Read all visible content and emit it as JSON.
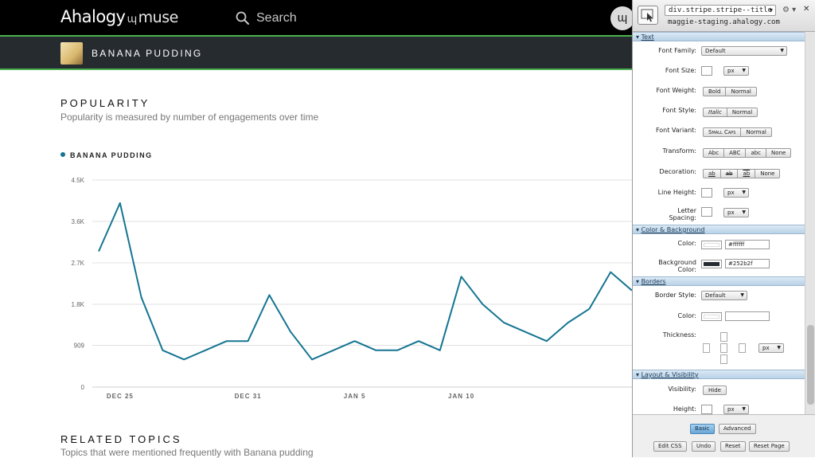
{
  "header": {
    "logo_main": "Ahalogy",
    "logo_glyph": "ɰ",
    "logo_sub": "muse",
    "search_placeholder": "Search",
    "user_initial": "ɰ"
  },
  "stripe": {
    "title": "BANANA PUDDING"
  },
  "popularity": {
    "title": "POPULARITY",
    "subtitle": "Popularity is measured by number of engagements over time",
    "legend": "BANANA PUDDING"
  },
  "related": {
    "title": "RELATED TOPICS",
    "subtitle": "Topics that were mentioned frequently with Banana pudding"
  },
  "chart_data": {
    "type": "line",
    "series": [
      {
        "name": "BANANA PUDDING",
        "color": "#157592",
        "x": [
          0,
          1,
          2,
          3,
          4,
          5,
          6,
          7,
          8,
          9,
          10,
          11,
          12,
          13,
          14,
          15,
          16,
          17,
          18,
          19,
          20,
          21,
          22,
          23,
          24,
          25
        ],
        "values": [
          2950,
          4000,
          1950,
          800,
          600,
          800,
          1000,
          1000,
          2000,
          1200,
          600,
          800,
          1000,
          800,
          800,
          1000,
          800,
          2400,
          1800,
          1400,
          1200,
          1000,
          1400,
          1700,
          2500,
          2100
        ]
      }
    ],
    "x_tick_labels": [
      {
        "label": "DEC 25",
        "x": 1
      },
      {
        "label": "DEC 31",
        "x": 7
      },
      {
        "label": "JAN 5",
        "x": 12
      },
      {
        "label": "JAN 10",
        "x": 17
      }
    ],
    "y_ticks": [
      0,
      909,
      1800,
      2700,
      3600,
      4500
    ],
    "y_tick_labels": [
      "0",
      "909",
      "1.8K",
      "2.7K",
      "3.6K",
      "4.5K"
    ],
    "ylim": [
      0,
      4500
    ],
    "x_start": -0.3,
    "grid": true
  },
  "inspector": {
    "selector": "div.stripe.stripe--title",
    "url": "maggie-staging.ahalogy.com",
    "sections": {
      "text": "Text",
      "color": "Color & Background",
      "borders": "Borders",
      "layout": "Layout & Visibility"
    },
    "labels": {
      "font_family": "Font Family:",
      "font_size": "Font Size:",
      "font_weight": "Font Weight:",
      "font_style": "Font Style:",
      "font_variant": "Font Variant:",
      "transform": "Transform:",
      "decoration": "Decoration:",
      "line_height": "Line Height:",
      "letter_spacing_1": "Letter",
      "letter_spacing_2": "Spacing:",
      "color": "Color:",
      "bg_1": "Background",
      "bg_2": "Color:",
      "border_style": "Border Style:",
      "border_color": "Color:",
      "thickness": "Thickness:",
      "visibility": "Visibility:",
      "height": "Height:"
    },
    "values": {
      "font_family": "Default",
      "unit": "px",
      "color": "#ffffff",
      "bg_color": "#252b2f",
      "border_style": "Default"
    },
    "buttons": {
      "bold": "Bold",
      "normal": "Normal",
      "italic": "Italic",
      "small_caps": "Small Caps",
      "abc_cap": "Abc",
      "abc_upper": "ABC",
      "abc_lower": "abc",
      "none": "None",
      "deco_1": "ab",
      "deco_2": "ab",
      "deco_3": "ab",
      "hide": "Hide"
    },
    "footer": {
      "basic": "Basic",
      "advanced": "Advanced",
      "edit_css": "Edit CSS",
      "undo": "Undo",
      "reset": "Reset",
      "reset_page": "Reset Page"
    }
  }
}
